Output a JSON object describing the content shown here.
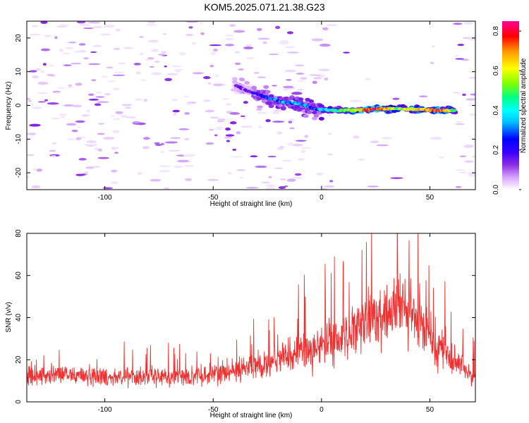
{
  "title": "KOM5.2025.071.21.38.G23",
  "chart_data": [
    {
      "type": "heatmap",
      "xlabel": "Height of straight line (km)",
      "ylabel": "Frequency (Hz)",
      "xlim": [
        -136,
        71
      ],
      "ylim": [
        -25,
        25
      ],
      "x_ticks": [
        "-100",
        "-50",
        "0",
        "50"
      ],
      "x_tick_values": [
        -100,
        -50,
        0,
        50
      ],
      "y_ticks": [
        "20",
        "10",
        "0",
        "-10",
        "-20"
      ],
      "y_tick_values": [
        20,
        10,
        0,
        -10,
        -20
      ],
      "colorbar": {
        "label": "Normalized spectral amplitude",
        "range": [
          0.0,
          0.85
        ],
        "ticks": [
          "0.0",
          "0.2",
          "0.4",
          "0.6",
          "0.8"
        ],
        "tick_values": [
          0.0,
          0.2,
          0.4,
          0.6,
          0.8
        ],
        "colormap": [
          "#ffffff",
          "#d8a8ff",
          "#8a2be2",
          "#5a00ff",
          "#0000ff",
          "#00bfff",
          "#00ffff",
          "#00ff80",
          "#80ff00",
          "#ffff00",
          "#ff9900",
          "#ff0000",
          "#ff0099"
        ]
      },
      "ridge": {
        "x": [
          -40,
          -33,
          -26,
          -18,
          -10,
          -3,
          5,
          15,
          25,
          35,
          45,
          55,
          62
        ],
        "y": [
          6,
          4,
          2.5,
          1,
          0.5,
          -1,
          -1.5,
          -1.5,
          -1,
          -1,
          -1.2,
          -1.5,
          -1.5
        ],
        "amplitude": [
          0.12,
          0.2,
          0.28,
          0.33,
          0.35,
          0.3,
          0.45,
          0.6,
          0.8,
          0.55,
          0.65,
          0.75,
          0.5
        ]
      },
      "grid": false
    },
    {
      "type": "line",
      "xlabel": "Height of straight line (km)",
      "ylabel": "SNR (v/v)",
      "xlim": [
        -136,
        71
      ],
      "ylim": [
        0,
        80
      ],
      "x_ticks": [
        "-100",
        "-50",
        "0",
        "50"
      ],
      "x_tick_values": [
        -100,
        -50,
        0,
        50
      ],
      "y_ticks": [
        "0",
        "20",
        "40",
        "60",
        "80"
      ],
      "y_tick_values": [
        0,
        20,
        40,
        60,
        80
      ],
      "color": "#f03030",
      "envelope": {
        "x": [
          -136,
          -120,
          -100,
          -80,
          -60,
          -45,
          -35,
          -20,
          -5,
          5,
          15,
          25,
          30,
          35,
          40,
          50,
          60,
          71
        ],
        "y": [
          12,
          13,
          12,
          12,
          12,
          14,
          16,
          20,
          25,
          28,
          33,
          40,
          44,
          45,
          42,
          32,
          20,
          12
        ]
      },
      "peak": {
        "x": 35,
        "y": 80
      },
      "grid": false
    }
  ]
}
